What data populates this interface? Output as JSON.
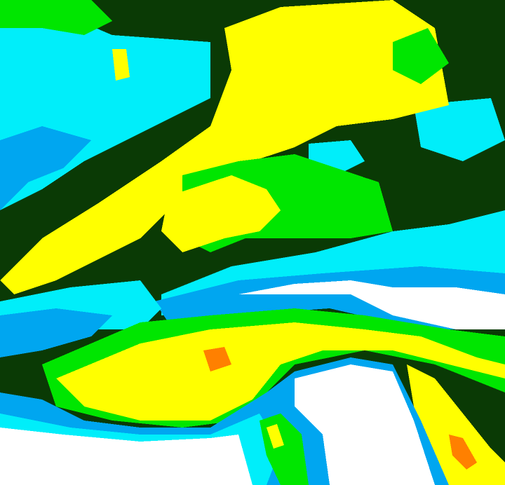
{
  "map": {
    "type": "classified-raster",
    "palette": {
      "dark_green": "#0a3a05",
      "green": "#00e600",
      "yellow": "#ffff00",
      "cyan": "#00eefa",
      "blue": "#00a6f0",
      "orange": "#ff8000",
      "white": "#ffffff"
    }
  }
}
